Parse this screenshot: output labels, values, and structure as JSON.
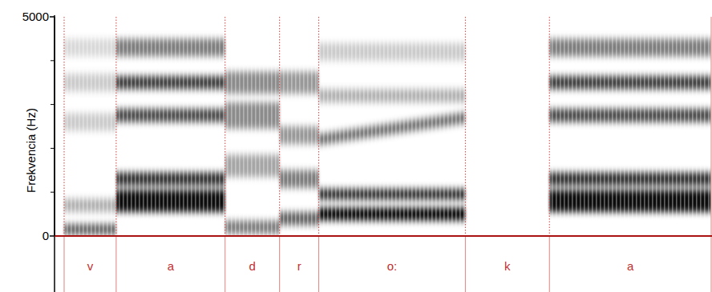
{
  "chart_data": {
    "type": "spectrogram",
    "y_label": "Frekvencia (Hz)",
    "ylim": [
      0,
      5000
    ],
    "yticks": [
      0,
      5000
    ],
    "yminor_ticks": [
      1000,
      2000,
      3000,
      4000
    ],
    "xlim": [
      0,
      0.82
    ],
    "tick_labels": "y",
    "segments": [
      {
        "label": "v",
        "start": 0.012,
        "end": 0.077,
        "formants": [
          {
            "freq": 150,
            "bandwidth": 250,
            "intensity": 0.6
          },
          {
            "freq": 700,
            "bandwidth": 300,
            "intensity": 0.3
          },
          {
            "freq": 2600,
            "bandwidth": 400,
            "intensity": 0.2
          },
          {
            "freq": 3500,
            "bandwidth": 400,
            "intensity": 0.2
          },
          {
            "freq": 4300,
            "bandwidth": 400,
            "intensity": 0.15
          }
        ]
      },
      {
        "label": "a",
        "start": 0.077,
        "end": 0.213,
        "formants": [
          {
            "freq": 800,
            "bandwidth": 500,
            "intensity": 0.95
          },
          {
            "freq": 1300,
            "bandwidth": 300,
            "intensity": 0.8
          },
          {
            "freq": 2750,
            "bandwidth": 300,
            "intensity": 0.7
          },
          {
            "freq": 3500,
            "bandwidth": 300,
            "intensity": 0.75
          },
          {
            "freq": 4300,
            "bandwidth": 400,
            "intensity": 0.5
          }
        ]
      },
      {
        "label": "d",
        "start": 0.213,
        "end": 0.281,
        "formants": [
          {
            "freq": 200,
            "bandwidth": 300,
            "intensity": 0.5
          },
          {
            "freq": 1600,
            "bandwidth": 500,
            "intensity": 0.35
          },
          {
            "freq": 2750,
            "bandwidth": 600,
            "intensity": 0.45
          },
          {
            "freq": 3500,
            "bandwidth": 500,
            "intensity": 0.45
          }
        ]
      },
      {
        "label": "r",
        "start": 0.281,
        "end": 0.33,
        "formants": [
          {
            "freq": 400,
            "bandwidth": 300,
            "intensity": 0.6
          },
          {
            "freq": 1300,
            "bandwidth": 400,
            "intensity": 0.5
          },
          {
            "freq": 2300,
            "bandwidth": 400,
            "intensity": 0.4
          },
          {
            "freq": 3500,
            "bandwidth": 500,
            "intensity": 0.4
          }
        ]
      },
      {
        "label": "o:",
        "start": 0.33,
        "end": 0.513,
        "formants": [
          {
            "freq": 500,
            "bandwidth": 300,
            "intensity": 0.95
          },
          {
            "freq": 950,
            "bandwidth": 250,
            "intensity": 0.8
          },
          {
            "freq": 2200,
            "freq_end": 2700,
            "bandwidth": 250,
            "intensity": 0.55
          },
          {
            "freq": 3200,
            "bandwidth": 300,
            "intensity": 0.3
          },
          {
            "freq": 4200,
            "bandwidth": 400,
            "intensity": 0.2
          }
        ]
      },
      {
        "label": "k",
        "start": 0.513,
        "end": 0.618,
        "formants": []
      },
      {
        "label": "a",
        "start": 0.618,
        "end": 0.82,
        "formants": [
          {
            "freq": 800,
            "bandwidth": 500,
            "intensity": 0.95
          },
          {
            "freq": 1300,
            "bandwidth": 300,
            "intensity": 0.8
          },
          {
            "freq": 2750,
            "bandwidth": 300,
            "intensity": 0.7
          },
          {
            "freq": 3500,
            "bandwidth": 300,
            "intensity": 0.75
          },
          {
            "freq": 4300,
            "bandwidth": 400,
            "intensity": 0.5
          }
        ]
      }
    ]
  }
}
